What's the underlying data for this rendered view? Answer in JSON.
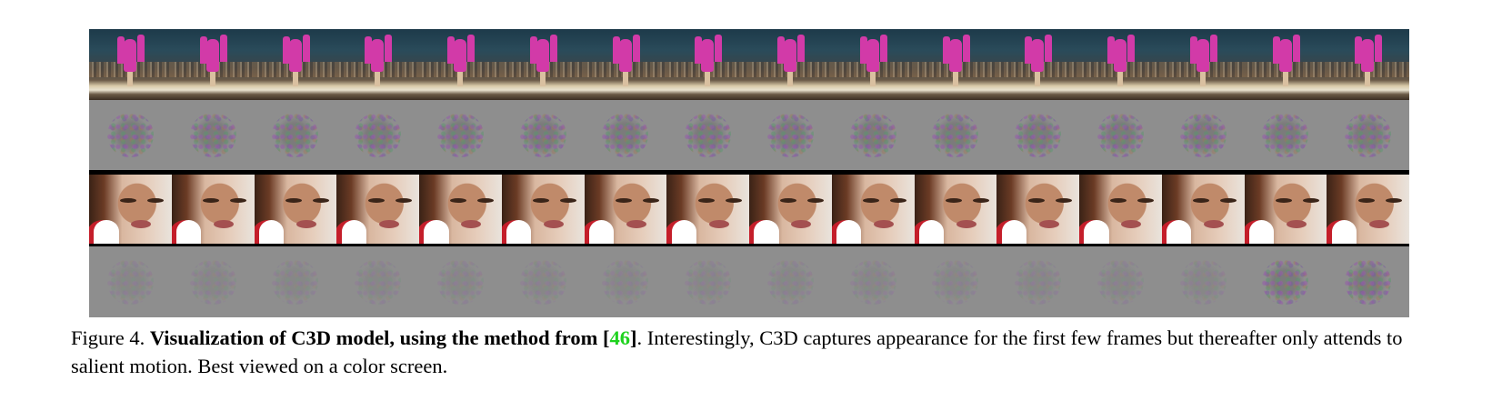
{
  "figure": {
    "frames_per_row": 16,
    "rows": [
      {
        "id": "gymnast-frames",
        "kind": "video-frames",
        "subject": "gymnast on balance beam"
      },
      {
        "id": "gymnast-visualization",
        "kind": "c3d-visualization"
      },
      {
        "id": "makeup-frames",
        "kind": "video-frames",
        "subject": "woman applying eye makeup"
      },
      {
        "id": "makeup-visualization",
        "kind": "c3d-visualization"
      }
    ],
    "colors": {
      "citation": "#1fd21f",
      "visualization_background": "#8e8e8e",
      "divider": "#000000"
    }
  },
  "caption": {
    "label": "Figure 4.",
    "bold_title": "Visualization of C3D model, using the method from",
    "bracket_open": "[",
    "citation": "46",
    "bracket_close": "]",
    "body": ". Interestingly, C3D captures appearance for the first few frames but thereafter only attends to salient motion. Best viewed on a color screen."
  }
}
